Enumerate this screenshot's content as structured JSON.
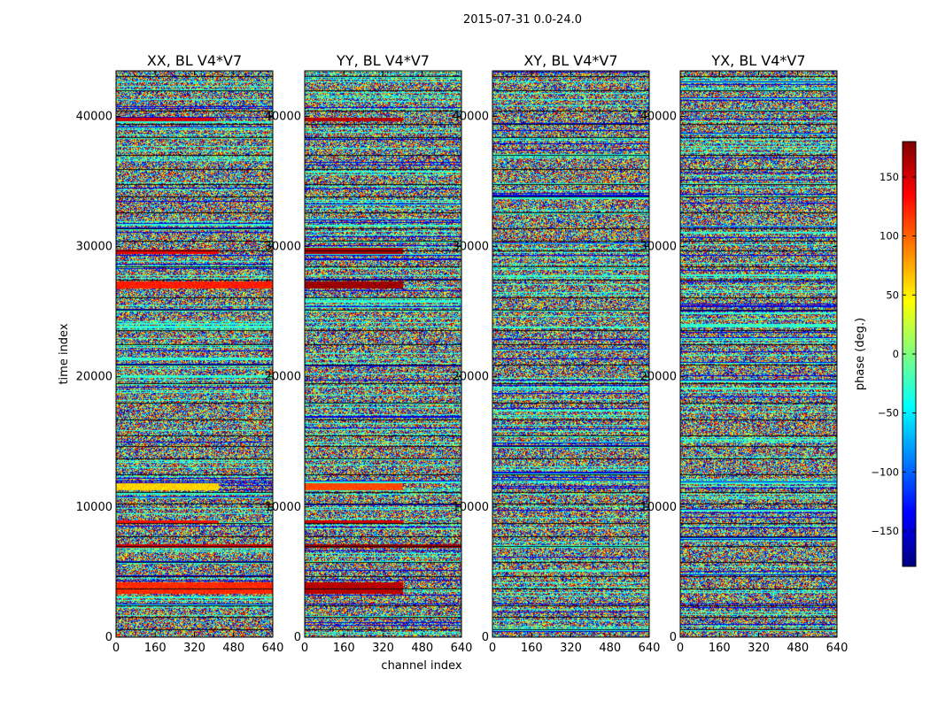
{
  "chart_data": {
    "type": "heatmap",
    "suptitle": "2015-07-31 0.0-24.0",
    "xlabel": "channel index",
    "ylabel": "time index",
    "xlim": [
      0,
      640
    ],
    "ylim": [
      0,
      43500
    ],
    "x_ticks": [
      0,
      160,
      320,
      480,
      640
    ],
    "x_tick_labels": [
      "0",
      "160",
      "320",
      "480",
      "640"
    ],
    "y_ticks": [
      0,
      10000,
      20000,
      30000,
      40000
    ],
    "y_tick_labels": [
      "0",
      "10000",
      "20000",
      "30000",
      "40000"
    ],
    "colormap": "jet",
    "panels": [
      {
        "title": "XX, BL V4*V7",
        "bands": [
          {
            "t0": 3300,
            "t1": 4200,
            "ch_end": 640,
            "phase": 120
          },
          {
            "t0": 6850,
            "t1": 7150,
            "ch_end": 640,
            "phase": 150
          },
          {
            "t0": 8700,
            "t1": 9000,
            "ch_end": 420,
            "phase": 130
          },
          {
            "t0": 11300,
            "t1": 11800,
            "ch_end": 420,
            "phase": 60
          },
          {
            "t0": 26800,
            "t1": 27300,
            "ch_end": 640,
            "phase": 125
          },
          {
            "t0": 29400,
            "t1": 29800,
            "ch_end": 420,
            "phase": 140
          },
          {
            "t0": 39600,
            "t1": 39900,
            "ch_end": 400,
            "phase": 150
          }
        ]
      },
      {
        "title": "YY, BL V4*V7",
        "bands": [
          {
            "t0": 3300,
            "t1": 4200,
            "ch_end": 400,
            "phase": 160
          },
          {
            "t0": 6850,
            "t1": 7150,
            "ch_end": 640,
            "phase": 170
          },
          {
            "t0": 8700,
            "t1": 9000,
            "ch_end": 400,
            "phase": 150
          },
          {
            "t0": 11300,
            "t1": 11800,
            "ch_end": 400,
            "phase": 110
          },
          {
            "t0": 26800,
            "t1": 27300,
            "ch_end": 400,
            "phase": 170
          },
          {
            "t0": 29400,
            "t1": 29900,
            "ch_end": 400,
            "phase": 165
          },
          {
            "t0": 39600,
            "t1": 39900,
            "ch_end": 400,
            "phase": 160
          }
        ]
      },
      {
        "title": "XY, BL V4*V7",
        "bands": []
      },
      {
        "title": "YX, BL V4*V7",
        "bands": []
      }
    ],
    "colorbar": {
      "label": "phase (deg.)",
      "range": [
        -180,
        180
      ],
      "ticks": [
        -150,
        -100,
        -50,
        0,
        50,
        100,
        150
      ],
      "tick_labels": [
        "−150",
        "−100",
        "−50",
        "0",
        "50",
        "100",
        "150"
      ]
    }
  }
}
